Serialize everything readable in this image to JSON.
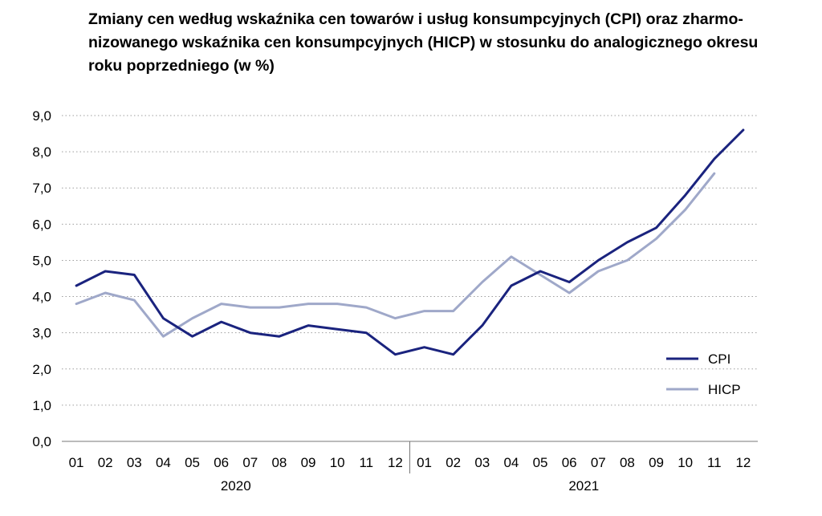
{
  "chart_data": {
    "type": "line",
    "title_lines": [
      "Zmiany cen według wskaźnika cen towarów i usług konsumpcyjnych (CPI) oraz zharmo-",
      "nizowanego wskaźnika cen konsumpcyjnych (HICP) w stosunku do analogicznego okresu",
      "roku poprzedniego (w %)"
    ],
    "categories": [
      "01",
      "02",
      "03",
      "04",
      "05",
      "06",
      "07",
      "08",
      "09",
      "10",
      "11",
      "12",
      "01",
      "02",
      "03",
      "04",
      "05",
      "06",
      "07",
      "08",
      "09",
      "10",
      "11",
      "12"
    ],
    "groups": [
      {
        "label": "2020",
        "start": 0,
        "end": 11
      },
      {
        "label": "2021",
        "start": 12,
        "end": 23
      }
    ],
    "ylim": [
      0,
      9
    ],
    "yticks": [
      0,
      1,
      2,
      3,
      4,
      5,
      6,
      7,
      8,
      9
    ],
    "ytick_labels": [
      "0,0",
      "1,0",
      "2,0",
      "3,0",
      "4,0",
      "5,0",
      "6,0",
      "7,0",
      "8,0",
      "9,0"
    ],
    "grid": "horizontal dotted",
    "legend_position": "right",
    "series": [
      {
        "name": "CPI",
        "color": "#1a237e",
        "values": [
          4.3,
          4.7,
          4.6,
          3.4,
          2.9,
          3.3,
          3.0,
          2.9,
          3.2,
          3.1,
          3.0,
          2.4,
          2.6,
          2.4,
          3.2,
          4.3,
          4.7,
          4.4,
          5.0,
          5.5,
          5.9,
          6.8,
          7.8,
          8.6
        ]
      },
      {
        "name": "HICP",
        "color": "#9fa8c9",
        "values": [
          3.8,
          4.1,
          3.9,
          2.9,
          3.4,
          3.8,
          3.7,
          3.7,
          3.8,
          3.8,
          3.7,
          3.4,
          3.6,
          3.6,
          4.4,
          5.1,
          4.6,
          4.1,
          4.7,
          5.0,
          5.6,
          6.4,
          7.4,
          null
        ]
      }
    ]
  }
}
